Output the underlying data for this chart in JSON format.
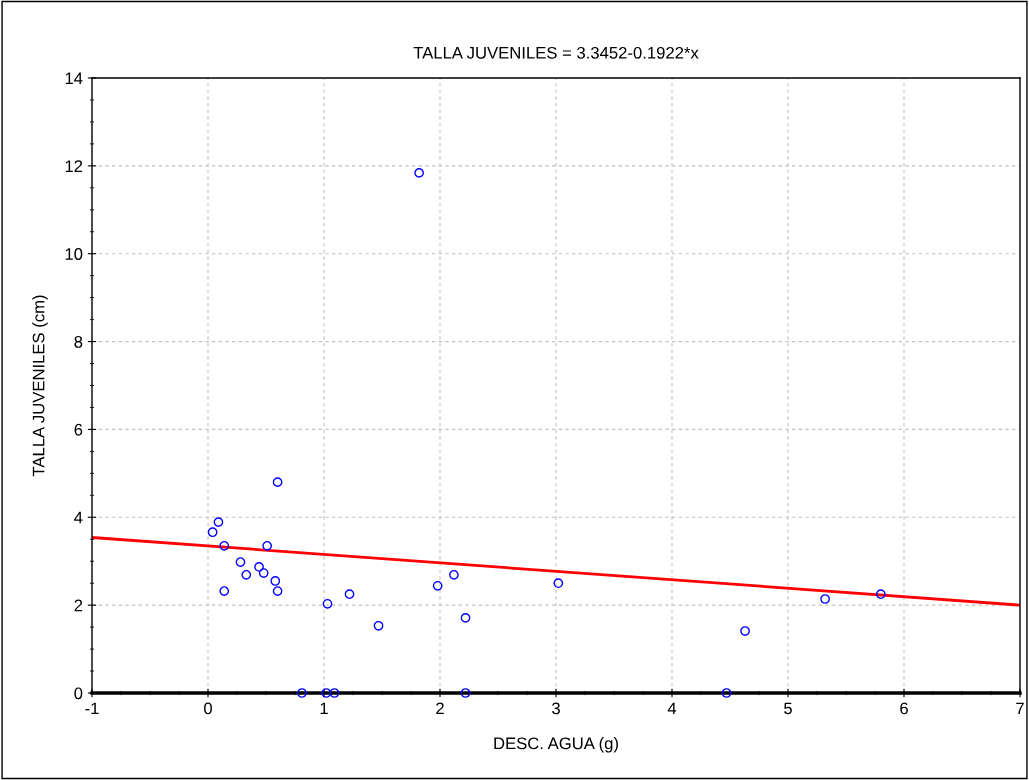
{
  "chart_data": {
    "type": "scatter",
    "title": "TALLA JUVENILES = 3.3452-0.1922*x",
    "xlabel": "DESC. AGUA (g)",
    "ylabel": "TALLA JUVENILES (cm)",
    "xlim": [
      -1,
      7
    ],
    "xticks": [
      -1,
      0,
      1,
      2,
      3,
      4,
      5,
      6,
      7
    ],
    "ylim": [
      0,
      14
    ],
    "yticks": [
      0,
      2,
      4,
      6,
      8,
      10,
      12,
      14
    ],
    "grid": true,
    "marker": "circle",
    "series": [
      {
        "color": "#0000ff",
        "x": [
          0.04,
          0.09,
          0.14,
          0.14,
          0.28,
          0.33,
          0.44,
          0.48,
          0.51,
          0.58,
          0.6,
          0.6,
          0.81,
          1.02,
          1.09,
          1.03,
          1.22,
          1.47,
          1.82,
          1.98,
          2.12,
          2.22,
          2.22,
          3.02,
          4.47,
          4.63,
          5.32,
          5.8
        ],
        "values": [
          3.66,
          3.89,
          3.35,
          2.32,
          2.98,
          2.69,
          2.87,
          2.73,
          3.35,
          2.55,
          2.32,
          4.8,
          0,
          0,
          0,
          2.03,
          2.25,
          1.53,
          11.84,
          2.44,
          2.69,
          1.71,
          0,
          2.5,
          0,
          1.41,
          2.14,
          2.25
        ]
      },
      {
        "type": "line",
        "color": "#ff0000",
        "x": [
          -1,
          7
        ],
        "values": [
          3.54,
          2.0
        ],
        "marker": "none",
        "line_style": "solid"
      }
    ]
  }
}
